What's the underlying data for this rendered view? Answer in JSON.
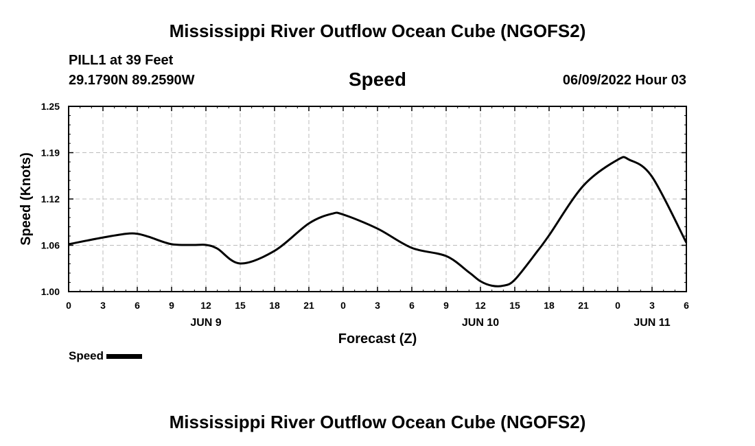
{
  "header": {
    "title": "Mississippi River Outflow Ocean Cube (NGOFS2)",
    "station": "PILL1 at 39 Feet",
    "coords": "29.1790N  89.2590W",
    "datetime": "06/09/2022 Hour 03"
  },
  "legend": {
    "label": "Speed"
  },
  "footer": {
    "title": "Mississippi River Outflow Ocean Cube (NGOFS2)"
  },
  "chart_data": {
    "type": "line",
    "title": "Speed",
    "xlabel": "Forecast (Z)",
    "ylabel": "Speed (Knots)",
    "x_range_hours": [
      0,
      54
    ],
    "ylim": [
      1.0,
      1.25
    ],
    "y_ticks": [
      "1.00",
      "1.06",
      "1.12",
      "1.19",
      "1.25"
    ],
    "x_tick_labels": [
      "0",
      "3",
      "6",
      "9",
      "12",
      "15",
      "18",
      "21",
      "0",
      "3",
      "6",
      "9",
      "12",
      "15",
      "18",
      "21",
      "0",
      "3",
      "6"
    ],
    "date_labels": [
      {
        "text": "JUN 9",
        "at_hour": 12
      },
      {
        "text": "JUN 10",
        "at_hour": 36
      },
      {
        "text": "JUN 11",
        "at_hour": 51
      }
    ],
    "grid": true,
    "legend_position": "bottom-left",
    "series": [
      {
        "name": "Speed",
        "color": "#000000",
        "x": [
          0,
          3,
          5,
          6,
          7,
          9,
          11,
          12,
          13,
          15,
          18,
          21,
          23,
          24,
          27,
          30,
          33,
          35,
          36,
          37,
          38,
          39,
          41,
          42,
          45,
          48,
          49,
          51,
          54
        ],
        "y": [
          1.064,
          1.073,
          1.078,
          1.078,
          1.074,
          1.064,
          1.063,
          1.063,
          1.058,
          1.038,
          1.055,
          1.092,
          1.105,
          1.104,
          1.085,
          1.059,
          1.048,
          1.026,
          1.014,
          1.008,
          1.008,
          1.016,
          1.055,
          1.076,
          1.143,
          1.178,
          1.178,
          1.155,
          1.066
        ]
      }
    ]
  }
}
